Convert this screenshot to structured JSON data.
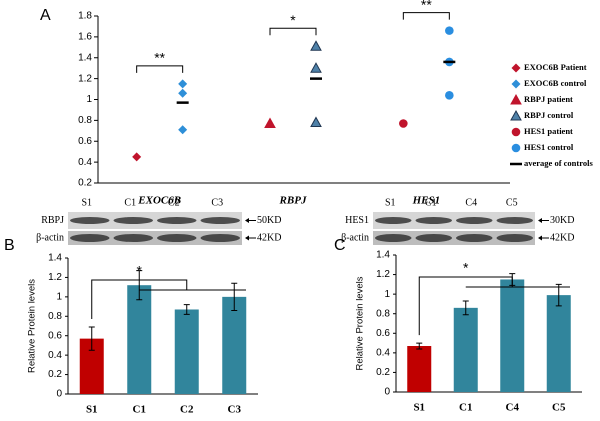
{
  "chart_data": [
    {
      "type": "dot",
      "panel": "A",
      "categories": [
        "EXOC6B",
        "RBPJ",
        "HES1"
      ],
      "ylim": [
        0.2,
        1.8
      ],
      "yticks": [
        0.2,
        0.4,
        0.6,
        0.8,
        1,
        1.2,
        1.4,
        1.6,
        1.8
      ],
      "series": [
        {
          "name": "EXOC6B Patient",
          "color": "#c0142c",
          "marker": "diamond",
          "values": [
            [
              0.45
            ],
            [],
            []
          ]
        },
        {
          "name": "EXOC6B control",
          "color": "#2e8fd8",
          "marker": "diamond",
          "values": [
            [
              1.15,
              1.06,
              0.71
            ],
            [],
            []
          ]
        },
        {
          "name": "RBPJ patient",
          "color": "#c0142c",
          "marker": "triangle",
          "values": [
            [],
            [
              0.77
            ],
            []
          ]
        },
        {
          "name": "RBPJ control",
          "color": "#4f81a8",
          "marker": "triangle",
          "values": [
            [],
            [
              1.51,
              1.3,
              0.78
            ],
            []
          ]
        },
        {
          "name": "HES1 patient",
          "color": "#c0142c",
          "marker": "circle",
          "values": [
            [],
            [],
            [
              0.77
            ]
          ]
        },
        {
          "name": "HES1 control",
          "color": "#2a8ee0",
          "marker": "circle",
          "values": [
            [],
            [],
            [
              1.66,
              1.36,
              1.04
            ]
          ]
        },
        {
          "name": "average of controls",
          "color": "#000000",
          "marker": "dash",
          "values": [
            [
              0.97
            ],
            [
              1.2
            ],
            [
              1.36
            ]
          ]
        }
      ],
      "significance": [
        "**",
        "*",
        "**"
      ]
    },
    {
      "type": "bar",
      "panel": "B",
      "blot": {
        "lanes": [
          "S1",
          "C1",
          "C2",
          "C3"
        ],
        "rows": [
          {
            "label": "RBPJ",
            "size": "50KD"
          },
          {
            "label": "β-actin",
            "size": "42KD"
          }
        ]
      },
      "y_label": "Relative  Protein levels",
      "categories": [
        "S1",
        "C1",
        "C2",
        "C3"
      ],
      "values": [
        0.57,
        1.12,
        0.87,
        1.0
      ],
      "errors": [
        0.12,
        0.15,
        0.05,
        0.14
      ],
      "colors": [
        "#c00000",
        "#31859c",
        "#31859c",
        "#31859c"
      ],
      "ylim": [
        0,
        1.4
      ],
      "yticks": [
        0,
        0.2,
        0.4,
        0.6,
        0.8,
        1,
        1.2,
        1.4
      ],
      "significance": "*"
    },
    {
      "type": "bar",
      "panel": "C",
      "blot": {
        "lanes": [
          "S1",
          "C1",
          "C4",
          "C5"
        ],
        "rows": [
          {
            "label": "HES1",
            "size": "30KD"
          },
          {
            "label": "β-actin",
            "size": "42KD"
          }
        ]
      },
      "y_label": "Relative  Protein levels",
      "categories": [
        "S1",
        "C1",
        "C4",
        "C5"
      ],
      "values": [
        0.47,
        0.86,
        1.15,
        0.99
      ],
      "errors": [
        0.03,
        0.07,
        0.06,
        0.11
      ],
      "colors": [
        "#c00000",
        "#31859c",
        "#31859c",
        "#31859c"
      ],
      "ylim": [
        0,
        1.4
      ],
      "yticks": [
        0,
        0.2,
        0.4,
        0.6,
        0.8,
        1,
        1.2,
        1.4
      ],
      "significance": "*"
    }
  ]
}
